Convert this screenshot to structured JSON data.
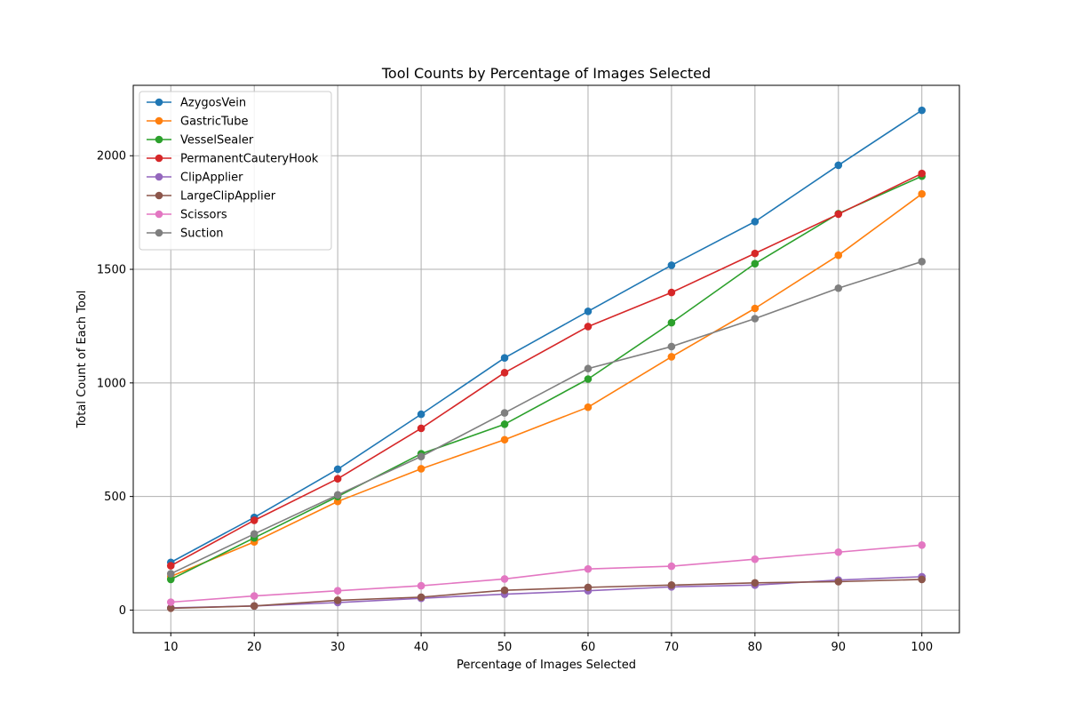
{
  "chart_data": {
    "type": "line",
    "title": "Tool Counts by Percentage of Images Selected",
    "xlabel": "Percentage of Images Selected",
    "ylabel": "Total Count of Each Tool",
    "x": [
      10,
      20,
      30,
      40,
      50,
      60,
      70,
      80,
      90,
      100
    ],
    "xticks": [
      10,
      20,
      30,
      40,
      50,
      60,
      70,
      80,
      90,
      100
    ],
    "yticks": [
      0,
      500,
      1000,
      1500,
      2000
    ],
    "xlim": [
      5.5,
      104.5
    ],
    "ylim": [
      -100,
      2310
    ],
    "grid": true,
    "legend_position": "upper-left",
    "marker": "circle",
    "series": [
      {
        "name": "AzygosVein",
        "color": "#1f77b4",
        "values": [
          210,
          408,
          620,
          862,
          1110,
          1315,
          1518,
          1710,
          1958,
          2200
        ]
      },
      {
        "name": "GastricTube",
        "color": "#ff7f0e",
        "values": [
          148,
          300,
          478,
          622,
          750,
          893,
          1115,
          1328,
          1562,
          1832
        ]
      },
      {
        "name": "VesselSealer",
        "color": "#2ca02c",
        "values": [
          135,
          318,
          500,
          688,
          818,
          1017,
          1265,
          1525,
          1745,
          1910
        ]
      },
      {
        "name": "PermanentCauteryHook",
        "color": "#d62728",
        "values": [
          195,
          395,
          578,
          800,
          1045,
          1248,
          1398,
          1570,
          1743,
          1922
        ]
      },
      {
        "name": "ClipApplier",
        "color": "#9467bd",
        "values": [
          10,
          18,
          33,
          52,
          70,
          85,
          102,
          110,
          132,
          147
        ]
      },
      {
        "name": "LargeClipApplier",
        "color": "#8c564b",
        "values": [
          8,
          18,
          43,
          57,
          87,
          100,
          110,
          120,
          125,
          135
        ]
      },
      {
        "name": "Scissors",
        "color": "#e377c2",
        "values": [
          35,
          62,
          85,
          107,
          137,
          181,
          193,
          224,
          255,
          286
        ]
      },
      {
        "name": "Suction",
        "color": "#7f7f7f",
        "values": [
          160,
          335,
          507,
          676,
          868,
          1063,
          1160,
          1283,
          1417,
          1534
        ]
      }
    ]
  }
}
